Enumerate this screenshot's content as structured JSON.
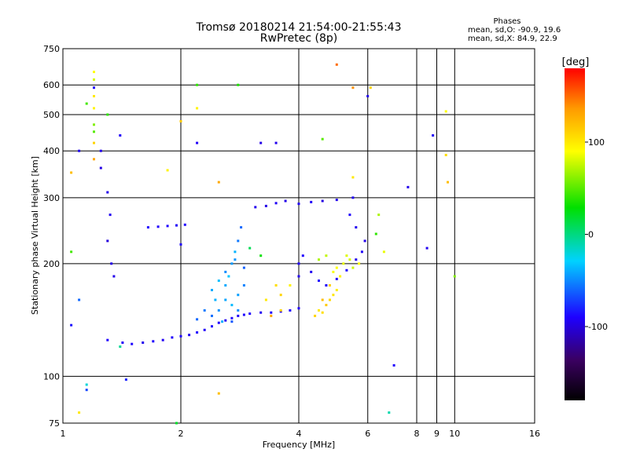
{
  "header": {
    "title_line1": "Tromsø 20180214 21:54:00-21:55:43",
    "title_line2": "RwPretec (8p)",
    "stats_title": "Phases",
    "stats_line1": "mean, sd,O: -90.9, 19.6",
    "stats_line2": "mean, sd,X:  84.9, 22.9"
  },
  "chart_data": {
    "type": "scatter",
    "title": "Tromsø 20180214 21:54:00-21:55:43",
    "subtitle": "RwPretec (8p)",
    "xlabel": "Frequency [MHz]",
    "ylabel": "Stationary phase Virtual Height [km]",
    "x_scale": "log",
    "y_scale": "log",
    "xlim": [
      1,
      16
    ],
    "ylim": [
      75,
      750
    ],
    "x_ticks": [
      1,
      2,
      4,
      6,
      8,
      9,
      10,
      16
    ],
    "x_tick_labels": [
      "1",
      "2",
      "4",
      "6",
      "8",
      "9",
      "10",
      "16"
    ],
    "y_ticks": [
      75,
      100,
      200,
      300,
      400,
      500,
      600,
      750
    ],
    "y_tick_labels": [
      "75",
      "100",
      "200",
      "300",
      "400",
      "500",
      "600",
      "750"
    ],
    "grid": true,
    "colorbar": {
      "label": "[deg]",
      "range": [
        -180,
        180
      ],
      "ticks": [
        100,
        0,
        -100
      ],
      "tick_labels": [
        "100",
        "0",
        "-100"
      ]
    },
    "series": [
      {
        "values": [
          [
            1.3,
            125
          ],
          [
            1.42,
            123
          ],
          [
            1.5,
            122
          ],
          [
            1.6,
            123
          ],
          [
            1.7,
            124
          ],
          [
            1.8,
            125
          ],
          [
            1.9,
            127
          ],
          [
            2.0,
            128
          ],
          [
            2.1,
            129
          ],
          [
            2.2,
            131
          ],
          [
            2.3,
            133
          ],
          [
            2.4,
            136
          ],
          [
            2.5,
            139
          ],
          [
            2.6,
            141
          ],
          [
            2.7,
            143
          ],
          [
            2.8,
            145
          ],
          [
            2.9,
            146
          ],
          [
            3.0,
            147
          ],
          [
            3.2,
            148
          ],
          [
            3.4,
            148
          ],
          [
            3.6,
            149
          ],
          [
            3.8,
            150
          ],
          [
            4.0,
            152
          ],
          [
            1.25,
            400
          ],
          [
            1.25,
            360
          ],
          [
            1.3,
            310
          ],
          [
            1.32,
            270
          ],
          [
            1.3,
            230
          ],
          [
            1.33,
            200
          ],
          [
            1.35,
            185
          ],
          [
            1.65,
            250
          ],
          [
            1.75,
            251
          ],
          [
            1.85,
            252
          ],
          [
            1.95,
            253
          ],
          [
            2.05,
            254
          ],
          [
            2.0,
            225
          ],
          [
            3.1,
            283
          ],
          [
            3.3,
            285
          ],
          [
            3.5,
            290
          ],
          [
            3.7,
            294
          ],
          [
            4.0,
            289
          ],
          [
            4.3,
            292
          ],
          [
            4.6,
            294
          ],
          [
            5.0,
            296
          ],
          [
            5.5,
            300
          ],
          [
            4.0,
            185
          ],
          [
            4.0,
            200
          ],
          [
            4.1,
            210
          ],
          [
            4.3,
            190
          ],
          [
            4.5,
            180
          ],
          [
            4.7,
            175
          ],
          [
            5.0,
            182
          ],
          [
            5.3,
            192
          ],
          [
            5.6,
            205
          ],
          [
            5.8,
            215
          ],
          [
            5.9,
            230
          ],
          [
            5.6,
            250
          ],
          [
            5.4,
            270
          ],
          [
            6.0,
            560
          ],
          [
            7.6,
            320
          ],
          [
            8.5,
            220
          ],
          [
            8.8,
            440
          ],
          [
            7.0,
            107
          ],
          [
            2.2,
            420
          ],
          [
            3.5,
            420
          ],
          [
            3.2,
            420
          ],
          [
            1.2,
            590
          ],
          [
            1.1,
            400
          ],
          [
            1.4,
            440
          ],
          [
            1.1,
            160
          ],
          [
            1.45,
            98
          ],
          [
            1.15,
            92
          ],
          [
            1.05,
            137
          ]
        ],
        "phases": [
          -90,
          -92,
          -88,
          -95,
          -90,
          -93,
          -91,
          -89,
          -94,
          -90,
          -92,
          -88,
          -91,
          -93,
          -90,
          -92,
          -89,
          -91,
          -94,
          -90,
          -92,
          -90,
          -91,
          -95,
          -98,
          -96,
          -94,
          -100,
          -97,
          -96,
          -90,
          -91,
          -89,
          -92,
          -90,
          -88,
          -95,
          -97,
          -93,
          -96,
          -94,
          -92,
          -98,
          -95,
          -93,
          -95,
          -92,
          -90,
          -94,
          -88,
          -91,
          -93,
          -90,
          -95,
          -92,
          -96,
          -94,
          -91,
          -97,
          -96,
          -94,
          -93,
          -90,
          -92,
          -95,
          -97,
          -90,
          -94,
          -92,
          -60,
          -80,
          -70,
          -85
        ]
      },
      {
        "values": [
          [
            2.4,
            170
          ],
          [
            2.5,
            180
          ],
          [
            2.6,
            190
          ],
          [
            2.7,
            200
          ],
          [
            2.75,
            215
          ],
          [
            2.8,
            230
          ],
          [
            2.85,
            250
          ],
          [
            2.6,
            160
          ],
          [
            2.5,
            150
          ],
          [
            2.7,
            155
          ],
          [
            2.8,
            165
          ],
          [
            2.9,
            175
          ],
          [
            2.4,
            145
          ],
          [
            2.55,
            140
          ],
          [
            2.65,
            185
          ],
          [
            2.75,
            205
          ],
          [
            2.9,
            195
          ],
          [
            2.45,
            160
          ],
          [
            2.6,
            175
          ],
          [
            2.7,
            140
          ],
          [
            2.8,
            150
          ],
          [
            2.3,
            150
          ],
          [
            2.2,
            142
          ]
        ],
        "phases": [
          -40,
          -35,
          -50,
          -45,
          -38,
          -55,
          -60,
          -42,
          -48,
          -36,
          -44,
          -52,
          -58,
          -40,
          -33,
          -47,
          -62,
          -39,
          -41,
          -65,
          -50,
          -55,
          -60
        ]
      },
      {
        "values": [
          [
            4.4,
            145
          ],
          [
            4.5,
            150
          ],
          [
            4.6,
            148
          ],
          [
            4.7,
            155
          ],
          [
            4.8,
            160
          ],
          [
            4.9,
            165
          ],
          [
            5.0,
            170
          ],
          [
            4.6,
            160
          ],
          [
            4.8,
            175
          ],
          [
            5.0,
            195
          ],
          [
            5.2,
            200
          ],
          [
            5.4,
            205
          ],
          [
            4.7,
            210
          ],
          [
            4.9,
            190
          ],
          [
            5.1,
            185
          ],
          [
            5.3,
            210
          ],
          [
            5.5,
            195
          ],
          [
            4.5,
            205
          ],
          [
            5.7,
            200
          ],
          [
            3.5,
            175
          ],
          [
            3.6,
            165
          ],
          [
            3.3,
            160
          ],
          [
            3.8,
            175
          ]
        ],
        "phases": [
          110,
          100,
          105,
          115,
          108,
          102,
          98,
          120,
          112,
          90,
          85,
          80,
          75,
          88,
          95,
          82,
          78,
          70,
          92,
          105,
          110,
          100,
          95
        ]
      },
      {
        "values": [
          [
            1.2,
            650
          ],
          [
            1.2,
            620
          ],
          [
            1.2,
            560
          ],
          [
            1.2,
            520
          ],
          [
            1.2,
            470
          ],
          [
            1.2,
            450
          ],
          [
            1.2,
            420
          ],
          [
            1.2,
            380
          ],
          [
            1.3,
            500
          ],
          [
            1.05,
            350
          ],
          [
            1.05,
            215
          ],
          [
            1.1,
            80
          ],
          [
            2.8,
            600
          ],
          [
            5.0,
            680
          ],
          [
            5.5,
            590
          ],
          [
            6.1,
            590
          ],
          [
            9.5,
            510
          ],
          [
            9.5,
            390
          ],
          [
            9.6,
            330
          ],
          [
            10.0,
            185
          ],
          [
            6.4,
            270
          ],
          [
            6.3,
            240
          ],
          [
            6.6,
            215
          ],
          [
            3.4,
            145
          ],
          [
            3.6,
            150
          ],
          [
            1.85,
            355
          ],
          [
            2.2,
            520
          ],
          [
            2.0,
            480
          ],
          [
            2.5,
            90
          ],
          [
            4.6,
            430
          ],
          [
            5.5,
            340
          ],
          [
            2.5,
            330
          ]
        ],
        "phases": [
          90,
          80,
          100,
          95,
          60,
          50,
          110,
          130,
          40,
          120,
          45,
          100,
          35,
          150,
          140,
          110,
          90,
          105,
          120,
          60,
          70,
          40,
          85,
          130,
          110,
          95,
          95,
          115,
          120,
          50,
          100,
          130
        ]
      },
      {
        "values": [
          [
            2.2,
            600
          ],
          [
            1.95,
            75
          ],
          [
            3.0,
            220
          ],
          [
            3.2,
            210
          ],
          [
            6.8,
            80
          ],
          [
            1.15,
            535
          ],
          [
            1.15,
            95
          ],
          [
            1.4,
            120
          ]
        ],
        "phases": [
          40,
          20,
          10,
          30,
          -10,
          45,
          -20,
          -5
        ]
      }
    ]
  }
}
